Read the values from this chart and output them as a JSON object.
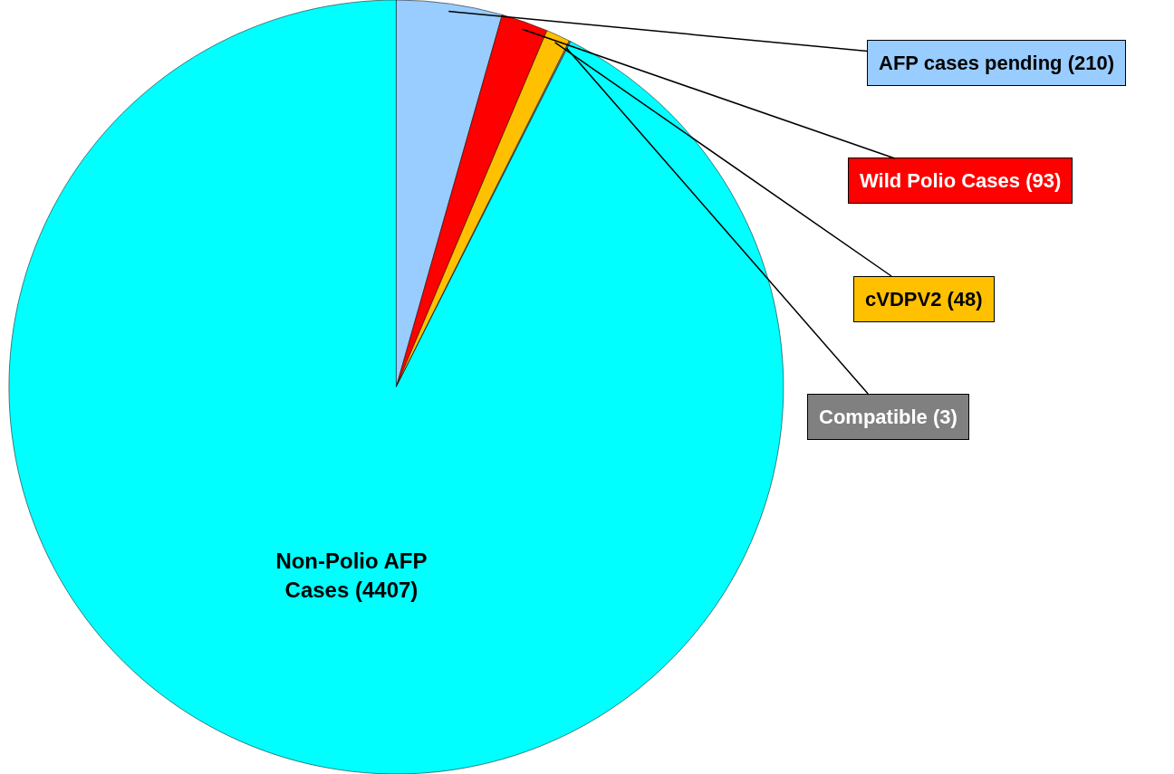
{
  "chart_data": {
    "type": "pie",
    "categories": [
      "AFP cases pending (210)",
      "Wild Polio Cases (93)",
      "cVDPV2 (48)",
      "Compatible (3)",
      "Non-Polio AFP Cases (4407)"
    ],
    "values": [
      210,
      93,
      48,
      3,
      4407
    ],
    "colors": [
      "#99ccff",
      "#ff0000",
      "#ffc000",
      "#808080",
      "#00ffff"
    ],
    "legend": false
  }
}
